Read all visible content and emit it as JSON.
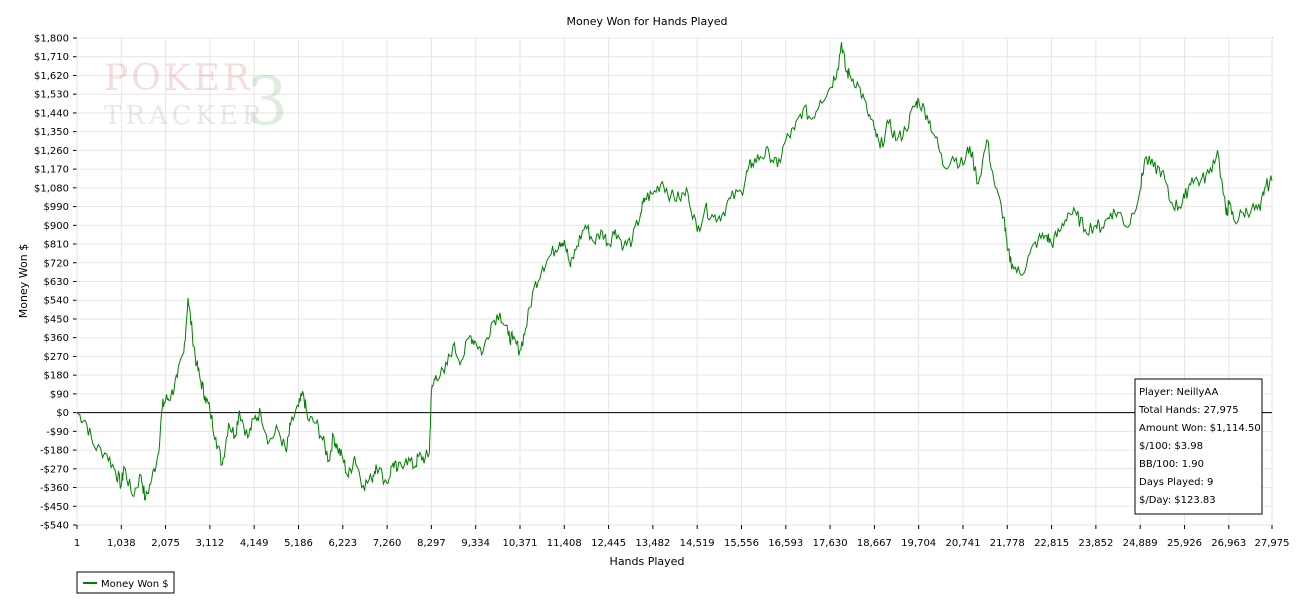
{
  "chart_data": {
    "type": "line",
    "title": "Money Won for Hands Played",
    "xlabel": "Hands Played",
    "ylabel": "Money Won $",
    "xlim": [
      1,
      27975
    ],
    "ylim": [
      -540,
      1800
    ],
    "grid": true,
    "legend_placement": "bottom-left",
    "x_ticks": [
      1,
      1038,
      2075,
      3112,
      4149,
      5186,
      6223,
      7260,
      8297,
      9334,
      10371,
      11408,
      12445,
      13482,
      14519,
      15556,
      16593,
      17630,
      18667,
      19704,
      20741,
      21778,
      22815,
      23852,
      24889,
      25926,
      26963,
      27975
    ],
    "x_tick_labels": [
      "1",
      "1,038",
      "2,075",
      "3,112",
      "4,149",
      "5,186",
      "6,223",
      "7,260",
      "8,297",
      "9,334",
      "10,371",
      "11,408",
      "12,445",
      "13,482",
      "14,519",
      "15,556",
      "16,593",
      "17,630",
      "18,667",
      "19,704",
      "20,741",
      "21,778",
      "22,815",
      "23,852",
      "24,889",
      "25,926",
      "26,963",
      "27,975"
    ],
    "y_ticks": [
      -540,
      -450,
      -360,
      -270,
      -180,
      -90,
      0,
      90,
      180,
      270,
      360,
      450,
      540,
      630,
      720,
      810,
      900,
      990,
      1080,
      1170,
      1260,
      1350,
      1440,
      1530,
      1620,
      1710,
      1800
    ],
    "y_tick_labels": [
      "-$540",
      "-$450",
      "-$360",
      "-$270",
      "-$180",
      "-$90",
      "$0",
      "$90",
      "$180",
      "$270",
      "$360",
      "$450",
      "$540",
      "$630",
      "$720",
      "$810",
      "$900",
      "$990",
      "$1,080",
      "$1,170",
      "$1,260",
      "$1,350",
      "$1,440",
      "$1,530",
      "$1,620",
      "$1,710",
      "$1,800"
    ],
    "series": [
      {
        "name": "Money Won $",
        "color": "#008000",
        "x": [
          1,
          200,
          400,
          700,
          900,
          1038,
          1100,
          1300,
          1500,
          1600,
          1750,
          1900,
          2000,
          2075,
          2200,
          2350,
          2500,
          2600,
          2700,
          2800,
          2900,
          3000,
          3112,
          3250,
          3400,
          3550,
          3700,
          3800,
          4000,
          4149,
          4300,
          4500,
          4700,
          4900,
          5000,
          5186,
          5300,
          5400,
          5600,
          5750,
          5900,
          6000,
          6100,
          6223,
          6350,
          6500,
          6700,
          6900,
          7000,
          7260,
          7400,
          7500,
          7700,
          7900,
          8000,
          8150,
          8250,
          8297,
          8400,
          8600,
          8800,
          9000,
          9200,
          9334,
          9500,
          9700,
          9900,
          10100,
          10200,
          10371,
          10500,
          10700,
          10900,
          11100,
          11300,
          11408,
          11550,
          11700,
          11900,
          12100,
          12300,
          12445,
          12600,
          12800,
          13000,
          13200,
          13300,
          13482,
          13700,
          13900,
          14100,
          14300,
          14519,
          14700,
          14900,
          15100,
          15300,
          15556,
          15700,
          15800,
          16000,
          16200,
          16400,
          16593,
          16800,
          17000,
          17200,
          17400,
          17630,
          17800,
          17900,
          18000,
          18100,
          18300,
          18500,
          18667,
          18800,
          19000,
          19200,
          19400,
          19600,
          19704,
          19900,
          20100,
          20300,
          20500,
          20741,
          20900,
          21100,
          21300,
          21500,
          21700,
          21778,
          21900,
          22100,
          22300,
          22500,
          22700,
          22815,
          23000,
          23200,
          23400,
          23600,
          23852,
          24000,
          24200,
          24400,
          24600,
          24889,
          25000,
          25200,
          25400,
          25600,
          25800,
          25926,
          26100,
          26300,
          26500,
          26700,
          26900,
          26963,
          27100,
          27300,
          27500,
          27700,
          27800,
          27975
        ],
        "y": [
          0,
          -40,
          -160,
          -200,
          -280,
          -350,
          -260,
          -400,
          -300,
          -420,
          -320,
          -200,
          30,
          60,
          80,
          170,
          290,
          550,
          380,
          230,
          150,
          80,
          10,
          -120,
          -250,
          -50,
          -110,
          10,
          -120,
          -30,
          0,
          -140,
          -80,
          -190,
          -60,
          30,
          90,
          -30,
          -50,
          -130,
          -230,
          -110,
          -170,
          -220,
          -310,
          -210,
          -350,
          -320,
          -250,
          -340,
          -240,
          -280,
          -220,
          -260,
          -210,
          -220,
          -190,
          100,
          180,
          190,
          320,
          250,
          370,
          340,
          290,
          430,
          480,
          370,
          350,
          300,
          400,
          600,
          700,
          760,
          820,
          830,
          700,
          800,
          900,
          820,
          870,
          810,
          880,
          800,
          830,
          960,
          1030,
          1050,
          1110,
          1040,
          1030,
          1060,
          870,
          980,
          940,
          950,
          1030,
          1060,
          1160,
          1200,
          1230,
          1250,
          1180,
          1310,
          1360,
          1460,
          1410,
          1500,
          1560,
          1650,
          1780,
          1640,
          1620,
          1570,
          1450,
          1360,
          1270,
          1390,
          1310,
          1360,
          1470,
          1500,
          1430,
          1320,
          1180,
          1230,
          1190,
          1280,
          1100,
          1310,
          1080,
          940,
          780,
          710,
          660,
          760,
          830,
          850,
          810,
          870,
          960,
          950,
          880,
          900,
          890,
          960,
          960,
          890,
          1070,
          1220,
          1180,
          1160,
          1010,
          990,
          1030,
          1130,
          1110,
          1150,
          1260,
          950,
          1000,
          920,
          960,
          980,
          970,
          1080,
          1114.5
        ]
      }
    ]
  },
  "legend": {
    "label": "Money Won $"
  },
  "watermark": {
    "line1": "POKER",
    "line2": "TRACKER",
    "mark": "3"
  },
  "stats_box": {
    "player": "Player: NeillyAA",
    "total_hands": "Total Hands: 27,975",
    "amount_won": "Amount Won: $1,114.50",
    "per_100": "$/100: $3.98",
    "bb_per_100": "BB/100: 1.90",
    "days_played": "Days Played: 9",
    "per_day": "$/Day: $123.83"
  }
}
